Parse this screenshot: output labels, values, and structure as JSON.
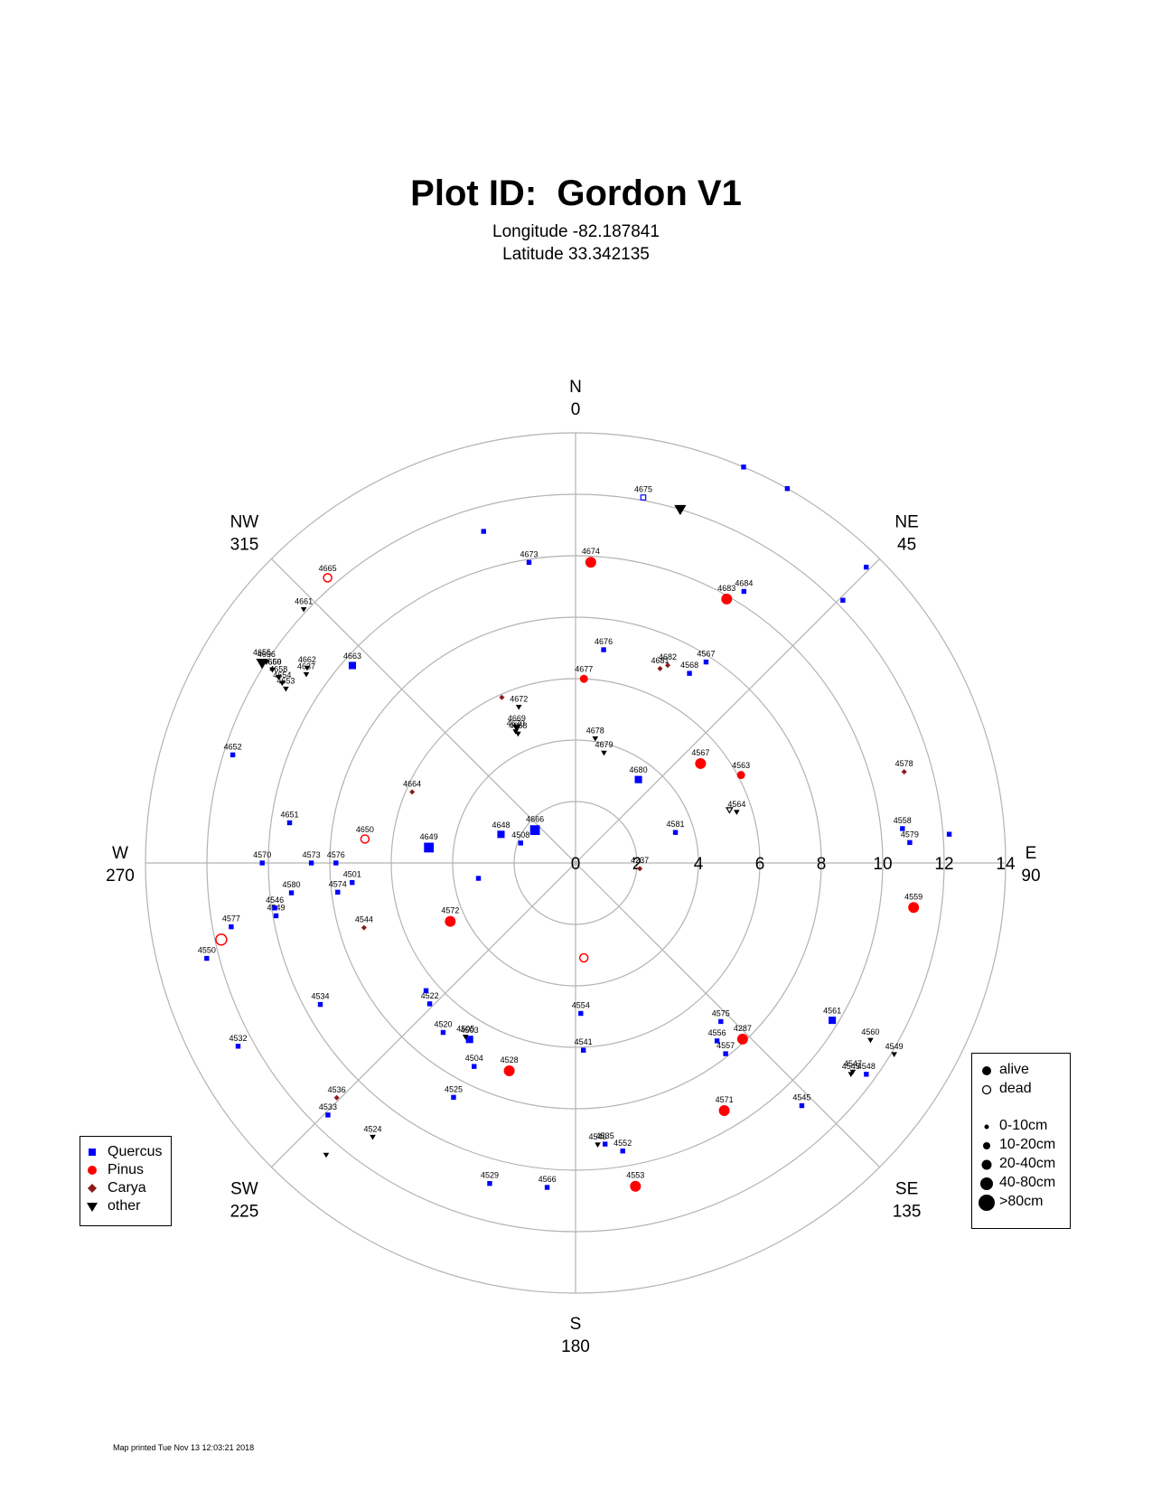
{
  "chart_data": {
    "type": "scatter",
    "coordinate_system": "polar",
    "title": "Plot ID:  Gordon V1",
    "subtitle": [
      "Longitude -82.187841",
      "Latitude 33.342135"
    ],
    "radial_range": [
      0,
      14
    ],
    "radial_ticks": [
      0,
      2,
      4,
      6,
      8,
      10,
      12,
      14
    ],
    "rings": [
      2,
      4,
      6,
      8,
      10,
      12,
      14
    ],
    "directions": [
      {
        "name": "N",
        "azimuth": 0
      },
      {
        "name": "NE",
        "azimuth": 45
      },
      {
        "name": "E",
        "azimuth": 90
      },
      {
        "name": "SE",
        "azimuth": 135
      },
      {
        "name": "S",
        "azimuth": 180
      },
      {
        "name": "SW",
        "azimuth": 225
      },
      {
        "name": "W",
        "azimuth": 270
      },
      {
        "name": "NW",
        "azimuth": 315
      }
    ],
    "colors": {
      "Quercus": "#0000ff",
      "Pinus": "#ff0000",
      "Carya": "#8b1a1a",
      "other": "#000000",
      "grid": "#b3b3b3"
    },
    "symbols": {
      "Quercus": "square",
      "Pinus": "circle",
      "Carya": "diamond",
      "other": "triangle-down"
    },
    "points": [
      {
        "id": "4675",
        "az": 10.5,
        "dist": 12.1,
        "sp": "Quercus",
        "st": "dead",
        "sz": 1
      },
      {
        "id": "",
        "az": 16.5,
        "dist": 12.0,
        "sp": "other",
        "st": "alive",
        "sz": 3
      },
      {
        "id": "",
        "az": 23,
        "dist": 14.0,
        "sp": "Quercus",
        "st": "alive",
        "sz": 1
      },
      {
        "id": "",
        "az": 29.5,
        "dist": 14.0,
        "sp": "Quercus",
        "st": "alive",
        "sz": 1
      },
      {
        "id": "",
        "az": -15.5,
        "dist": 11.2,
        "sp": "Quercus",
        "st": "alive",
        "sz": 1
      },
      {
        "id": "4673",
        "az": -8.8,
        "dist": 9.9,
        "sp": "Quercus",
        "st": "alive",
        "sz": 1
      },
      {
        "id": "4674",
        "az": 2.9,
        "dist": 9.8,
        "sp": "Pinus",
        "st": "alive",
        "sz": 3
      },
      {
        "id": "4684",
        "az": 31.8,
        "dist": 10.4,
        "sp": "Quercus",
        "st": "alive",
        "sz": 1
      },
      {
        "id": "4683",
        "az": 29.8,
        "dist": 9.9,
        "sp": "Pinus",
        "st": "alive",
        "sz": 3
      },
      {
        "id": "",
        "az": 44.5,
        "dist": 13.5,
        "sp": "Quercus",
        "st": "alive",
        "sz": 1
      },
      {
        "id": "",
        "az": 45.5,
        "dist": 12.2,
        "sp": "Quercus",
        "st": "alive",
        "sz": 1
      },
      {
        "id": "4676",
        "az": 7.5,
        "dist": 7.0,
        "sp": "Quercus",
        "st": "alive",
        "sz": 1
      },
      {
        "id": "4677",
        "az": 2.6,
        "dist": 6.0,
        "sp": "Pinus",
        "st": "alive",
        "sz": 2
      },
      {
        "id": "4682",
        "az": 25,
        "dist": 7.1,
        "sp": "Carya",
        "st": "alive",
        "sz": 1
      },
      {
        "id": "4681",
        "az": 23.5,
        "dist": 6.9,
        "sp": "Carya",
        "st": "alive",
        "sz": 1
      },
      {
        "id": "4567",
        "az": 33,
        "dist": 7.8,
        "sp": "Quercus",
        "st": "alive",
        "sz": 1
      },
      {
        "id": "4568",
        "az": 31,
        "dist": 7.2,
        "sp": "Quercus",
        "st": "alive",
        "sz": 1
      },
      {
        "id": "4678",
        "az": 9,
        "dist": 4.1,
        "sp": "other",
        "st": "alive",
        "sz": 1
      },
      {
        "id": "4679",
        "az": 14.5,
        "dist": 3.7,
        "sp": "other",
        "st": "alive",
        "sz": 1
      },
      {
        "id": "4680",
        "az": 37,
        "dist": 3.4,
        "sp": "Quercus",
        "st": "alive",
        "sz": 2
      },
      {
        "id": "4567",
        "az": 51.5,
        "dist": 5.2,
        "sp": "Pinus",
        "st": "alive",
        "sz": 3
      },
      {
        "id": "4563",
        "az": 62,
        "dist": 6.1,
        "sp": "Pinus",
        "st": "alive",
        "sz": 2
      },
      {
        "id": "4564",
        "az": 72.5,
        "dist": 5.5,
        "sp": "other",
        "st": "alive",
        "sz": 1
      },
      {
        "id": "",
        "az": 71,
        "dist": 5.3,
        "sp": "other",
        "st": "dead",
        "sz": 1
      },
      {
        "id": "4578",
        "az": 74.5,
        "dist": 11.1,
        "sp": "Carya",
        "st": "alive",
        "sz": 1
      },
      {
        "id": "4558",
        "az": 84,
        "dist": 10.7,
        "sp": "Quercus",
        "st": "alive",
        "sz": 1
      },
      {
        "id": "4579",
        "az": 86.5,
        "dist": 10.9,
        "sp": "Quercus",
        "st": "alive",
        "sz": 1
      },
      {
        "id": "",
        "az": 85.6,
        "dist": 12.2,
        "sp": "Quercus",
        "st": "alive",
        "sz": 1
      },
      {
        "id": "4581",
        "az": 73,
        "dist": 3.4,
        "sp": "Quercus",
        "st": "alive",
        "sz": 1
      },
      {
        "id": "4237",
        "az": 95,
        "dist": 2.1,
        "sp": "Carya",
        "st": "alive",
        "sz": 1
      },
      {
        "id": "4559",
        "az": 97.5,
        "dist": 11.1,
        "sp": "Pinus",
        "st": "alive",
        "sz": 3
      },
      {
        "id": "4561",
        "az": 121.5,
        "dist": 9.8,
        "sp": "Quercus",
        "st": "alive",
        "sz": 2
      },
      {
        "id": "4560",
        "az": 121,
        "dist": 11.2,
        "sp": "other",
        "st": "alive",
        "sz": 1
      },
      {
        "id": "4549",
        "az": 121,
        "dist": 12.1,
        "sp": "other",
        "st": "alive",
        "sz": 1
      },
      {
        "id": "4547",
        "az": 127,
        "dist": 11.3,
        "sp": "other",
        "st": "alive",
        "sz": 1
      },
      {
        "id": "4545",
        "az": 127.5,
        "dist": 11.3,
        "sp": "other",
        "st": "alive",
        "sz": 1
      },
      {
        "id": "4548",
        "az": 126,
        "dist": 11.7,
        "sp": "Quercus",
        "st": "alive",
        "sz": 1
      },
      {
        "id": "4545",
        "az": 137,
        "dist": 10.8,
        "sp": "Quercus",
        "st": "alive",
        "sz": 1
      },
      {
        "id": "4287",
        "az": 136.5,
        "dist": 7.9,
        "sp": "Pinus",
        "st": "alive",
        "sz": 3
      },
      {
        "id": "4575",
        "az": 137.5,
        "dist": 7.0,
        "sp": "Quercus",
        "st": "alive",
        "sz": 1
      },
      {
        "id": "4556",
        "az": 141.5,
        "dist": 7.4,
        "sp": "Quercus",
        "st": "alive",
        "sz": 1
      },
      {
        "id": "4557",
        "az": 141.8,
        "dist": 7.9,
        "sp": "Quercus",
        "st": "alive",
        "sz": 1
      },
      {
        "id": "4571",
        "az": 149,
        "dist": 9.4,
        "sp": "Pinus",
        "st": "alive",
        "sz": 3
      },
      {
        "id": "",
        "az": 175,
        "dist": 3.1,
        "sp": "Pinus",
        "st": "dead",
        "sz": 2
      },
      {
        "id": "4554",
        "az": 178,
        "dist": 4.9,
        "sp": "Quercus",
        "st": "alive",
        "sz": 1
      },
      {
        "id": "4541",
        "az": 177.6,
        "dist": 6.1,
        "sp": "Quercus",
        "st": "alive",
        "sz": 1
      },
      {
        "id": "4540",
        "az": 175.5,
        "dist": 9.2,
        "sp": "other",
        "st": "alive",
        "sz": 1
      },
      {
        "id": "4535",
        "az": 174,
        "dist": 9.2,
        "sp": "Quercus",
        "st": "alive",
        "sz": 1
      },
      {
        "id": "4552",
        "az": 170.7,
        "dist": 9.5,
        "sp": "Quercus",
        "st": "alive",
        "sz": 1
      },
      {
        "id": "4553",
        "az": 169.5,
        "dist": 10.7,
        "sp": "Pinus",
        "st": "alive",
        "sz": 3
      },
      {
        "id": "4566",
        "az": 185,
        "dist": 10.6,
        "sp": "Quercus",
        "st": "alive",
        "sz": 1
      },
      {
        "id": "4529",
        "az": 195,
        "dist": 10.8,
        "sp": "Quercus",
        "st": "alive",
        "sz": 1
      },
      {
        "id": "4528",
        "az": 197.7,
        "dist": 7.1,
        "sp": "Pinus",
        "st": "alive",
        "sz": 3
      },
      {
        "id": "4504",
        "az": 206.5,
        "dist": 7.4,
        "sp": "Quercus",
        "st": "alive",
        "sz": 1
      },
      {
        "id": "4525",
        "az": 207.5,
        "dist": 8.6,
        "sp": "Quercus",
        "st": "alive",
        "sz": 1
      },
      {
        "id": "4503",
        "az": 211,
        "dist": 6.7,
        "sp": "Quercus",
        "st": "alive",
        "sz": 2
      },
      {
        "id": "4505",
        "az": 212.3,
        "dist": 6.7,
        "sp": "other",
        "st": "alive",
        "sz": 1
      },
      {
        "id": "4520",
        "az": 218,
        "dist": 7.0,
        "sp": "Quercus",
        "st": "alive",
        "sz": 1
      },
      {
        "id": "4522",
        "az": 226,
        "dist": 6.6,
        "sp": "Quercus",
        "st": "alive",
        "sz": 1
      },
      {
        "id": "",
        "az": 229.5,
        "dist": 6.4,
        "sp": "Quercus",
        "st": "alive",
        "sz": 1
      },
      {
        "id": "4524",
        "az": 216.5,
        "dist": 11.1,
        "sp": "other",
        "st": "alive",
        "sz": 1
      },
      {
        "id": "4536",
        "az": 225.5,
        "dist": 10.9,
        "sp": "Carya",
        "st": "alive",
        "sz": 1
      },
      {
        "id": "4533",
        "az": 224.5,
        "dist": 11.5,
        "sp": "Quercus",
        "st": "alive",
        "sz": 1
      },
      {
        "id": "",
        "az": 220.5,
        "dist": 12.5,
        "sp": "other",
        "st": "alive",
        "sz": 1
      },
      {
        "id": "4534",
        "az": 241,
        "dist": 9.5,
        "sp": "Quercus",
        "st": "alive",
        "sz": 1
      },
      {
        "id": "4532",
        "az": 241.5,
        "dist": 12.5,
        "sp": "Quercus",
        "st": "alive",
        "sz": 1
      },
      {
        "id": "4572",
        "az": 245,
        "dist": 4.5,
        "sp": "Pinus",
        "st": "alive",
        "sz": 3
      },
      {
        "id": "",
        "az": 261,
        "dist": 3.2,
        "sp": "Quercus",
        "st": "alive",
        "sz": 1
      },
      {
        "id": "4544",
        "az": 253,
        "dist": 7.2,
        "sp": "Carya",
        "st": "alive",
        "sz": 1
      },
      {
        "id": "4550",
        "az": 255.5,
        "dist": 12.4,
        "sp": "Quercus",
        "st": "alive",
        "sz": 1
      },
      {
        "id": "",
        "az": 257.8,
        "dist": 11.8,
        "sp": "Pinus",
        "st": "dead",
        "sz": 3
      },
      {
        "id": "4577",
        "az": 259.5,
        "dist": 11.4,
        "sp": "Quercus",
        "st": "alive",
        "sz": 1
      },
      {
        "id": "4549",
        "az": 260,
        "dist": 9.9,
        "sp": "Quercus",
        "st": "alive",
        "sz": 1
      },
      {
        "id": "4546",
        "az": 261.5,
        "dist": 9.9,
        "sp": "Quercus",
        "st": "alive",
        "sz": 1
      },
      {
        "id": "4580",
        "az": 264,
        "dist": 9.3,
        "sp": "Quercus",
        "st": "alive",
        "sz": 1
      },
      {
        "id": "4574",
        "az": 263,
        "dist": 7.8,
        "sp": "Quercus",
        "st": "alive",
        "sz": 1
      },
      {
        "id": "4501",
        "az": 265,
        "dist": 7.3,
        "sp": "Quercus",
        "st": "alive",
        "sz": 1
      },
      {
        "id": "4576",
        "az": 270,
        "dist": 7.8,
        "sp": "Quercus",
        "st": "alive",
        "sz": 1
      },
      {
        "id": "4573",
        "az": 270,
        "dist": 8.6,
        "sp": "Quercus",
        "st": "alive",
        "sz": 1
      },
      {
        "id": "4570",
        "az": 270,
        "dist": 10.2,
        "sp": "Quercus",
        "st": "alive",
        "sz": 1
      },
      {
        "id": "4649",
        "az": 276,
        "dist": 4.8,
        "sp": "Quercus",
        "st": "alive",
        "sz": 3
      },
      {
        "id": "4508",
        "az": 290,
        "dist": 1.9,
        "sp": "Quercus",
        "st": "alive",
        "sz": 1
      },
      {
        "id": "4648",
        "az": 291,
        "dist": 2.6,
        "sp": "Quercus",
        "st": "alive",
        "sz": 2
      },
      {
        "id": "4666",
        "az": 309,
        "dist": 1.7,
        "sp": "Quercus",
        "st": "alive",
        "sz": 3
      },
      {
        "id": "4650",
        "az": 276.5,
        "dist": 6.9,
        "sp": "Pinus",
        "st": "dead",
        "sz": 2
      },
      {
        "id": "4651",
        "az": 278,
        "dist": 9.4,
        "sp": "Quercus",
        "st": "alive",
        "sz": 1
      },
      {
        "id": "4664",
        "az": 293.5,
        "dist": 5.8,
        "sp": "Carya",
        "st": "alive",
        "sz": 1
      },
      {
        "id": "4652",
        "az": 287.5,
        "dist": 11.7,
        "sp": "Quercus",
        "st": "alive",
        "sz": 1
      },
      {
        "id": "4663",
        "az": 311.5,
        "dist": 9.7,
        "sp": "Quercus",
        "st": "alive",
        "sz": 2
      },
      {
        "id": "4665",
        "az": 319,
        "dist": 12.3,
        "sp": "Pinus",
        "st": "dead",
        "sz": 2
      },
      {
        "id": "4661",
        "az": 313,
        "dist": 12.1,
        "sp": "other",
        "st": "alive",
        "sz": 1
      },
      {
        "id": "4662",
        "az": 306,
        "dist": 10.8,
        "sp": "other",
        "st": "alive",
        "sz": 1
      },
      {
        "id": "4637",
        "az": 305,
        "dist": 10.7,
        "sp": "other",
        "st": "alive",
        "sz": 1
      },
      {
        "id": "4658",
        "az": 302,
        "dist": 11.4,
        "sp": "other",
        "st": "alive",
        "sz": 1
      },
      {
        "id": "4660",
        "az": 302.5,
        "dist": 11.7,
        "sp": "other",
        "st": "alive",
        "sz": 1
      },
      {
        "id": "4659",
        "az": 302.5,
        "dist": 11.7,
        "sp": "other",
        "st": "alive",
        "sz": 1
      },
      {
        "id": "4656",
        "az": 303,
        "dist": 12.0,
        "sp": "other",
        "st": "alive",
        "sz": 1
      },
      {
        "id": "4655",
        "az": 302.5,
        "dist": 12.1,
        "sp": "other",
        "st": "alive",
        "sz": 3
      },
      {
        "id": "4654",
        "az": 301.5,
        "dist": 11.2,
        "sp": "other",
        "st": "alive",
        "sz": 1
      },
      {
        "id": "4653",
        "az": 301,
        "dist": 11.0,
        "sp": "other",
        "st": "alive",
        "sz": 1
      },
      {
        "id": "4672",
        "az": 340,
        "dist": 5.4,
        "sp": "other",
        "st": "alive",
        "sz": 1
      },
      {
        "id": "",
        "az": 336,
        "dist": 5.9,
        "sp": "Carya",
        "st": "alive",
        "sz": 1
      },
      {
        "id": "4669",
        "az": 336.5,
        "dist": 4.8,
        "sp": "other",
        "st": "alive",
        "sz": 2
      },
      {
        "id": "4670",
        "az": 335.5,
        "dist": 4.7,
        "sp": "other",
        "st": "alive",
        "sz": 1
      },
      {
        "id": "4668",
        "az": 336,
        "dist": 4.6,
        "sp": "other",
        "st": "alive",
        "sz": 1
      }
    ]
  },
  "legend_species": [
    {
      "label": "Quercus",
      "symbol": "square",
      "color": "#0000ff"
    },
    {
      "label": "Pinus",
      "symbol": "circle",
      "color": "#ff0000"
    },
    {
      "label": "Carya",
      "symbol": "diamond",
      "color": "#8b1a1a"
    },
    {
      "label": "other",
      "symbol": "triangle-down",
      "color": "#000000"
    }
  ],
  "legend_status": [
    {
      "label": "alive",
      "symbol": "filled-circle"
    },
    {
      "label": "dead",
      "symbol": "open-circle"
    }
  ],
  "legend_size": [
    {
      "label": "0-10cm",
      "size": 1
    },
    {
      "label": "10-20cm",
      "size": 2
    },
    {
      "label": "20-40cm",
      "size": 3
    },
    {
      "label": "40-80cm",
      "size": 4
    },
    {
      "label": ">80cm",
      "size": 5
    }
  ],
  "footer": "Map printed Tue Nov 13 12:03:21 2018"
}
